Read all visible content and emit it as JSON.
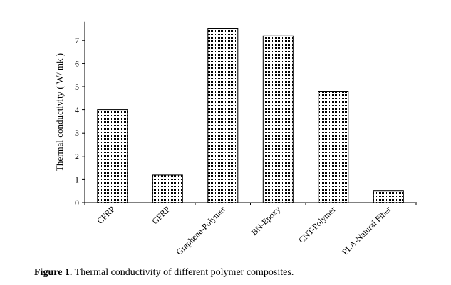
{
  "caption": {
    "label": "Figure 1.",
    "text": "Thermal conductivity of different polymer composites."
  },
  "chart_data": {
    "type": "bar",
    "title": "",
    "xlabel": "",
    "ylabel": "Thermal conductivity ( W/ mk )",
    "categories": [
      "CFRP",
      "GFRP",
      "Graphene-Polymer",
      "BN-Epoxy",
      "CNT-Polymer",
      "PLA-Natural Fiber"
    ],
    "values": [
      4.0,
      1.2,
      7.5,
      7.2,
      4.8,
      0.5
    ],
    "ylim": [
      0,
      7.8
    ],
    "yticks": [
      0,
      1,
      2,
      3,
      4,
      5,
      6,
      7
    ],
    "grid": false,
    "legend": "none",
    "bar_fill": "dotted-pattern",
    "colors": {
      "bar_stroke": "#000000",
      "dot": "#000000",
      "background": "#ffffff"
    }
  }
}
